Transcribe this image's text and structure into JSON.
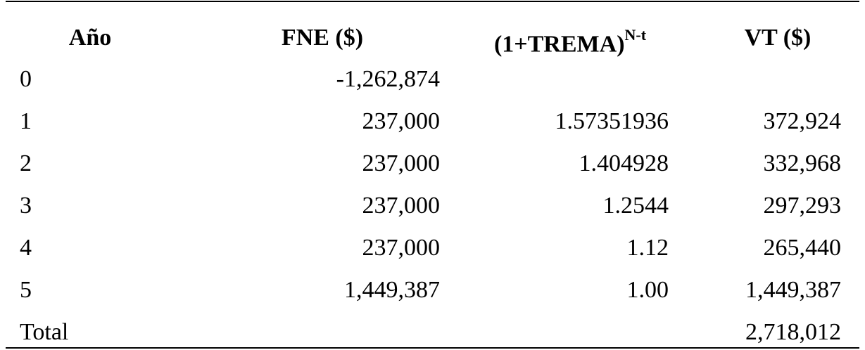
{
  "table": {
    "headers": [
      "Año",
      "FNE ($)",
      {
        "text": "(1+TREMA)",
        "sup": "N-t"
      },
      "VT ($)"
    ],
    "rows": [
      [
        "0",
        "-1,262,874",
        null,
        null
      ],
      [
        "1",
        "237,000",
        "1.57351936",
        "372,924"
      ],
      [
        "2",
        "237,000",
        "1.404928",
        "332,968"
      ],
      [
        "3",
        "237,000",
        "1.2544",
        "297,293"
      ],
      [
        "4",
        "237,000",
        "1.12",
        "265,440"
      ],
      [
        "5",
        "1,449,387",
        "1.00",
        "1,449,387"
      ],
      [
        "Total",
        null,
        null,
        "2,718,012"
      ]
    ]
  }
}
